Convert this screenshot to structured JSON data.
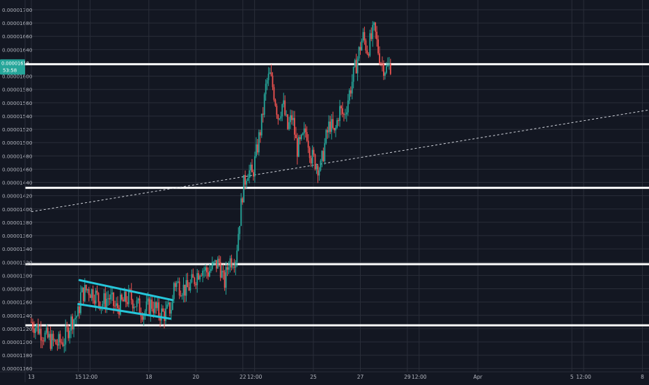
{
  "colors": {
    "background": "#131722",
    "grid": "#2a2e39",
    "axis_text": "#b2b5be",
    "up": "#26a69a",
    "down": "#ef5350",
    "horizontal_line": "#ffffff",
    "flag_line": "#26c6da",
    "trend_line": "#d1d4dc",
    "price_tag_bg": "#26a69a",
    "price_tag_text": "#ffffff"
  },
  "chart_data": {
    "type": "candlestick",
    "title": "",
    "xlabel": "",
    "ylabel": "",
    "ylim": [
      1.15e-05,
      1.71e-05
    ],
    "y_ticks": [
      "0.00001160",
      "0.00001180",
      "0.00001200",
      "0.00001220",
      "0.00001240",
      "0.00001260",
      "0.00001280",
      "0.00001300",
      "0.00001320",
      "0.00001340",
      "0.00001360",
      "0.00001380",
      "0.00001400",
      "0.00001420",
      "0.00001440",
      "0.00001460",
      "0.00001480",
      "0.00001500",
      "0.00001520",
      "0.00001540",
      "0.00001560",
      "0.00001580",
      "0.00001600",
      "0.00001640",
      "0.00001660",
      "0.00001680",
      "0.00001700"
    ],
    "x_ticks": [
      {
        "label": "13",
        "day": 13
      },
      {
        "label": "15",
        "day": 15
      },
      {
        "label": "12:00",
        "day": 15.5
      },
      {
        "label": "18",
        "day": 18
      },
      {
        "label": "20",
        "day": 20
      },
      {
        "label": "22",
        "day": 22
      },
      {
        "label": "12:00",
        "day": 22.5
      },
      {
        "label": "25",
        "day": 25
      },
      {
        "label": "27",
        "day": 27
      },
      {
        "label": "29",
        "day": 29
      },
      {
        "label": "12:00",
        "day": 29.5
      },
      {
        "label": "Apr",
        "day": 32
      },
      {
        "label": "5",
        "day": 36
      },
      {
        "label": "12:00",
        "day": 36.5
      },
      {
        "label": "8",
        "day": 39
      }
    ],
    "current_price_label": "0.00001618",
    "countdown_label": "53:58",
    "horizontal_levels": [
      1.618e-05,
      1.432e-05,
      1.317e-05,
      1.225e-05
    ],
    "flag_upper": {
      "start": [
        15.05,
        1.293e-05
      ],
      "end": [
        19.0,
        1.263e-05
      ]
    },
    "flag_lower": {
      "start": [
        15.0,
        1.257e-05
      ],
      "end": [
        18.9,
        1.235e-05
      ]
    },
    "trend_line": {
      "start": [
        13.0,
        1.396e-05
      ],
      "end": [
        39.6,
        1.551e-05
      ]
    },
    "price_path": [
      [
        13.0,
        1.23e-05
      ],
      [
        13.3,
        1.22e-05
      ],
      [
        13.6,
        1.208e-05
      ],
      [
        13.9,
        1.2e-05
      ],
      [
        14.1,
        1.197e-05
      ],
      [
        14.4,
        1.203e-05
      ],
      [
        14.7,
        1.232e-05
      ],
      [
        15.0,
        1.242e-05
      ],
      [
        15.1,
        1.27e-05
      ],
      [
        15.4,
        1.28e-05
      ],
      [
        15.7,
        1.272e-05
      ],
      [
        16.0,
        1.258e-05
      ],
      [
        16.3,
        1.268e-05
      ],
      [
        16.6,
        1.25e-05
      ],
      [
        16.9,
        1.26e-05
      ],
      [
        17.2,
        1.268e-05
      ],
      [
        17.5,
        1.255e-05
      ],
      [
        17.8,
        1.245e-05
      ],
      [
        18.1,
        1.258e-05
      ],
      [
        18.4,
        1.244e-05
      ],
      [
        18.7,
        1.242e-05
      ],
      [
        19.0,
        1.255e-05
      ],
      [
        19.05,
        1.29e-05
      ],
      [
        19.3,
        1.285e-05
      ],
      [
        19.6,
        1.278e-05
      ],
      [
        19.9,
        1.292e-05
      ],
      [
        20.2,
        1.312e-05
      ],
      [
        20.5,
        1.305e-05
      ],
      [
        20.8,
        1.315e-05
      ],
      [
        21.0,
        1.32e-05
      ],
      [
        21.2,
        1.285e-05
      ],
      [
        21.4,
        1.322e-05
      ],
      [
        21.7,
        1.328e-05
      ],
      [
        21.85,
        1.38e-05
      ],
      [
        22.0,
        1.43e-05
      ],
      [
        22.2,
        1.46e-05
      ],
      [
        22.4,
        1.45e-05
      ],
      [
        22.6,
        1.49e-05
      ],
      [
        22.8,
        1.53e-05
      ],
      [
        23.0,
        1.59e-05
      ],
      [
        23.15,
        1.6e-05
      ],
      [
        23.3,
        1.58e-05
      ],
      [
        23.5,
        1.54e-05
      ],
      [
        23.7,
        1.56e-05
      ],
      [
        23.9,
        1.52e-05
      ],
      [
        24.1,
        1.54e-05
      ],
      [
        24.3,
        1.49e-05
      ],
      [
        24.5,
        1.5e-05
      ],
      [
        24.7,
        1.52e-05
      ],
      [
        24.9,
        1.48e-05
      ],
      [
        25.1,
        1.47e-05
      ],
      [
        25.3,
        1.46e-05
      ],
      [
        25.5,
        1.5e-05
      ],
      [
        25.7,
        1.53e-05
      ],
      [
        25.9,
        1.51e-05
      ],
      [
        26.1,
        1.55e-05
      ],
      [
        26.3,
        1.54e-05
      ],
      [
        26.5,
        1.57e-05
      ],
      [
        26.7,
        1.6e-05
      ],
      [
        26.9,
        1.63e-05
      ],
      [
        27.1,
        1.66e-05
      ],
      [
        27.3,
        1.64e-05
      ],
      [
        27.5,
        1.66e-05
      ],
      [
        27.6,
        1.67e-05
      ],
      [
        27.75,
        1.64e-05
      ],
      [
        27.9,
        1.62e-05
      ],
      [
        28.1,
        1.61e-05
      ],
      [
        28.3,
        1.618e-05
      ]
    ]
  }
}
